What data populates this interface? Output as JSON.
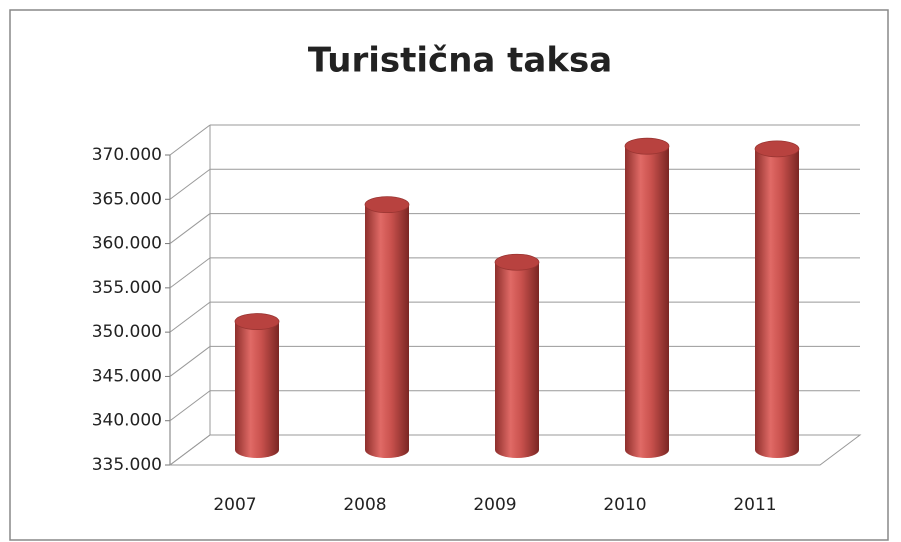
{
  "chart_data": {
    "type": "bar3d",
    "title": "Turistična taksa",
    "categories": [
      "2007",
      "2008",
      "2009",
      "2010",
      "2011"
    ],
    "values": [
      349500,
      362700,
      356200,
      369300,
      369000
    ],
    "color": "#c0504d",
    "ylim": [
      335000,
      370000
    ],
    "yticks": [
      {
        "value": 335000,
        "label": "335.000"
      },
      {
        "value": 340000,
        "label": "340.000"
      },
      {
        "value": 345000,
        "label": "345.000"
      },
      {
        "value": 350000,
        "label": "350.000"
      },
      {
        "value": 355000,
        "label": "355.000"
      },
      {
        "value": 360000,
        "label": "360.000"
      },
      {
        "value": 365000,
        "label": "365.000"
      },
      {
        "value": 370000,
        "label": "370.000"
      }
    ],
    "grid": true
  }
}
